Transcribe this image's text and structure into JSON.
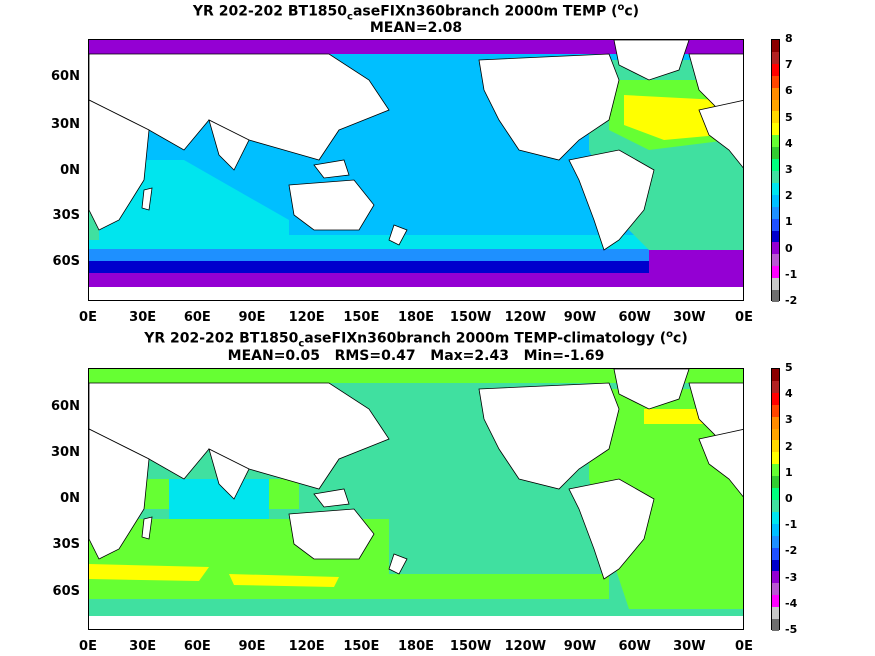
{
  "top": {
    "title_main": "YR 202-202 BT1850",
    "title_sub": "c",
    "title_rest": "aseFIXn360branch 2000m TEMP (",
    "title_unit_sup": "o",
    "title_unit": "c)",
    "stats": "MEAN=2.08",
    "colorbar_labels": [
      "8",
      "7",
      "6",
      "5",
      "4",
      "3",
      "2",
      "1",
      "0",
      "-1",
      "-2"
    ]
  },
  "bottom": {
    "title_main": "YR 202-202 BT1850",
    "title_sub": "c",
    "title_rest": "aseFIXn360branch 2000m TEMP-climatology (",
    "title_unit_sup": "o",
    "title_unit": "c)",
    "stats": "MEAN=0.05   RMS=0.47   Max=2.43   Min=-1.69",
    "colorbar_labels": [
      "5",
      "4",
      "3",
      "2",
      "1",
      "0",
      "-1",
      "-2",
      "-3",
      "-4",
      "-5"
    ]
  },
  "lat_labels": [
    "60N",
    "30N",
    "0N",
    "30S",
    "60S"
  ],
  "lon_labels": [
    "0E",
    "30E",
    "60E",
    "90E",
    "120E",
    "150E",
    "180E",
    "150W",
    "120W",
    "90W",
    "60W",
    "30W",
    "0E"
  ],
  "colors": {
    "scale": [
      "#6e6e6e",
      "#c8c8c8",
      "#ff00ff",
      "#ba55d3",
      "#9400d3",
      "#0000cd",
      "#1e50ff",
      "#1e90ff",
      "#00bfff",
      "#00e5ee",
      "#40e0a0",
      "#00ff7f",
      "#32cd32",
      "#66ff33",
      "#ffff00",
      "#ffd700",
      "#ffa500",
      "#ff8c00",
      "#ff4500",
      "#ff0000",
      "#b22222",
      "#8b0000"
    ]
  }
}
